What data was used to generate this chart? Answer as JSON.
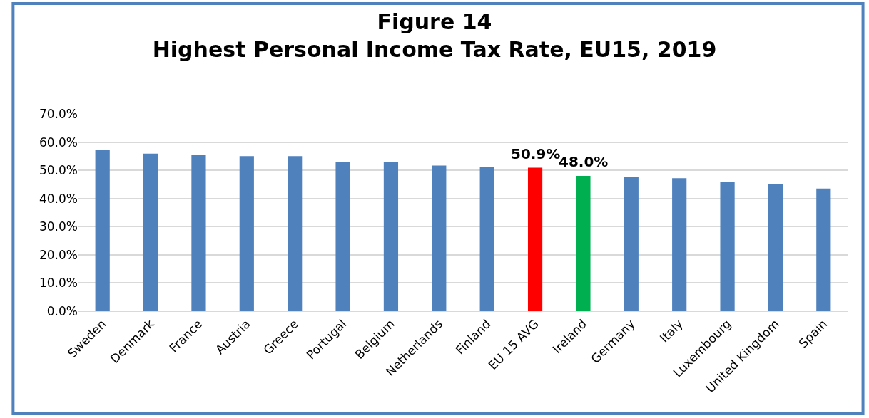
{
  "chart_data": {
    "type": "bar",
    "title": "Figure 14\nHighest Personal Income Tax Rate, EU15, 2019",
    "categories": [
      "Sweden",
      "Denmark",
      "France",
      "Austria",
      "Greece",
      "Portugal",
      "Belgium",
      "Netherlands",
      "Finland",
      "EU 15 AVG",
      "Ireland",
      "Germany",
      "Italy",
      "Luxembourg",
      "United Kingdom",
      "Spain"
    ],
    "values": [
      57.2,
      55.9,
      55.4,
      55.0,
      55.0,
      53.0,
      52.9,
      51.7,
      51.2,
      50.9,
      48.0,
      47.5,
      47.2,
      45.8,
      45.0,
      43.5
    ],
    "colors": [
      "#4f81bd",
      "#4f81bd",
      "#4f81bd",
      "#4f81bd",
      "#4f81bd",
      "#4f81bd",
      "#4f81bd",
      "#4f81bd",
      "#4f81bd",
      "#ff0000",
      "#00b050",
      "#4f81bd",
      "#4f81bd",
      "#4f81bd",
      "#4f81bd",
      "#4f81bd"
    ],
    "value_labels": [
      null,
      null,
      null,
      null,
      null,
      null,
      null,
      null,
      null,
      "50.9%",
      "48.0%",
      null,
      null,
      null,
      null,
      null
    ],
    "ylim": [
      0,
      70
    ],
    "yticks": [
      {
        "value": 0,
        "label": "0.0%"
      },
      {
        "value": 10,
        "label": "10.0%"
      },
      {
        "value": 20,
        "label": "20.0%"
      },
      {
        "value": 30,
        "label": "30.0%"
      },
      {
        "value": 40,
        "label": "40.0%"
      },
      {
        "value": 50,
        "label": "50.0%"
      },
      {
        "value": 60,
        "label": "60.0%"
      },
      {
        "value": 70,
        "label": "70.0%"
      }
    ],
    "grid": "y"
  }
}
